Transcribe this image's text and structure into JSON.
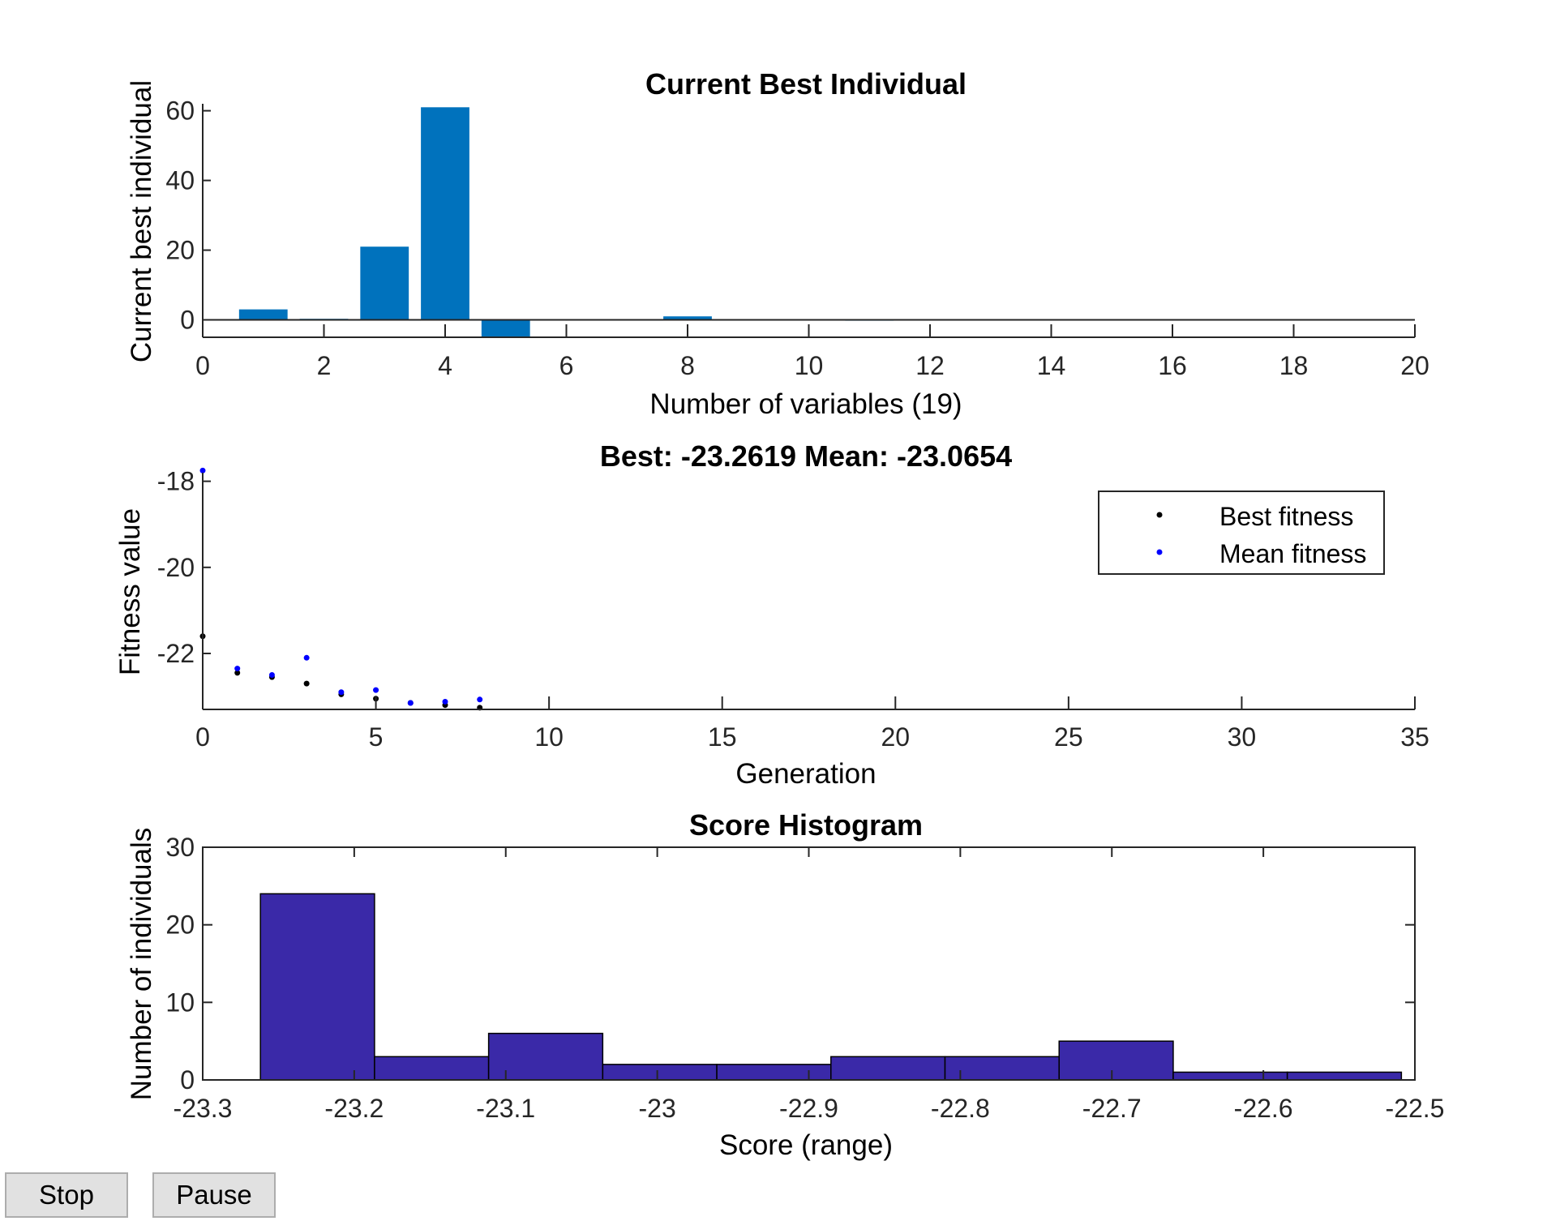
{
  "colors": {
    "bar": "#0072bd",
    "hist": "#3a29a8",
    "best": "#000000",
    "mean": "#0000ff"
  },
  "buttons": {
    "stop": "Stop",
    "pause": "Pause"
  },
  "chart_data": [
    {
      "type": "bar",
      "title": "Current Best Individual",
      "xlabel": "Number of variables (19)",
      "ylabel": "Current best individual",
      "xlim": [
        0,
        20
      ],
      "ylim": [
        -5,
        62
      ],
      "xticks": [
        "0",
        "2",
        "4",
        "6",
        "8",
        "10",
        "12",
        "14",
        "16",
        "18",
        "20"
      ],
      "yticks": [
        "0",
        "20",
        "40",
        "60"
      ],
      "x": [
        1,
        2,
        3,
        4,
        5,
        6,
        7,
        8,
        9,
        10,
        11,
        12,
        13,
        14,
        15,
        16,
        17,
        18,
        19
      ],
      "values": [
        3,
        0.3,
        21,
        61,
        -5,
        0,
        0,
        1,
        0,
        0,
        0.1,
        0,
        0,
        0,
        0,
        0,
        0,
        0,
        0
      ]
    },
    {
      "type": "scatter",
      "title": "Best: -23.2619 Mean: -23.0654",
      "xlabel": "Generation",
      "ylabel": "Fitness value",
      "xlim": [
        0,
        35
      ],
      "ylim": [
        -23.3,
        -17.8
      ],
      "xticks": [
        "0",
        "5",
        "10",
        "15",
        "20",
        "25",
        "30",
        "35"
      ],
      "yticks": [
        "-18",
        "-20",
        "-22"
      ],
      "legend_position": "top-right",
      "series": [
        {
          "name": "Best fitness",
          "x": [
            0,
            1,
            2,
            3,
            4,
            5,
            6,
            7,
            8
          ],
          "values": [
            -21.6,
            -22.45,
            -22.55,
            -22.7,
            -22.95,
            -23.05,
            -23.15,
            -23.2,
            -23.26
          ]
        },
        {
          "name": "Mean fitness",
          "x": [
            0,
            1,
            2,
            3,
            4,
            5,
            6,
            7,
            8
          ],
          "values": [
            -17.75,
            -22.35,
            -22.5,
            -22.1,
            -22.9,
            -22.85,
            -23.15,
            -23.12,
            -23.07
          ]
        }
      ]
    },
    {
      "type": "bar",
      "title": "Score Histogram",
      "xlabel": "Score (range)",
      "ylabel": "Number of individuals",
      "xlim": [
        -23.3,
        -22.5
      ],
      "ylim": [
        0,
        30
      ],
      "xticks": [
        "-23.3",
        "-23.2",
        "-23.1",
        "-23",
        "-22.9",
        "-22.8",
        "-22.7",
        "-22.6",
        "-22.5"
      ],
      "yticks": [
        "0",
        "10",
        "20",
        "30"
      ],
      "bin_edges": [
        -23.2619,
        -23.1866,
        -23.1113,
        -23.036,
        -22.9607,
        -22.8854,
        -22.8101,
        -22.7348,
        -22.6595,
        -22.5842,
        -22.5089
      ],
      "values": [
        24,
        3,
        6,
        2,
        2,
        3,
        3,
        5,
        1,
        1
      ]
    }
  ]
}
